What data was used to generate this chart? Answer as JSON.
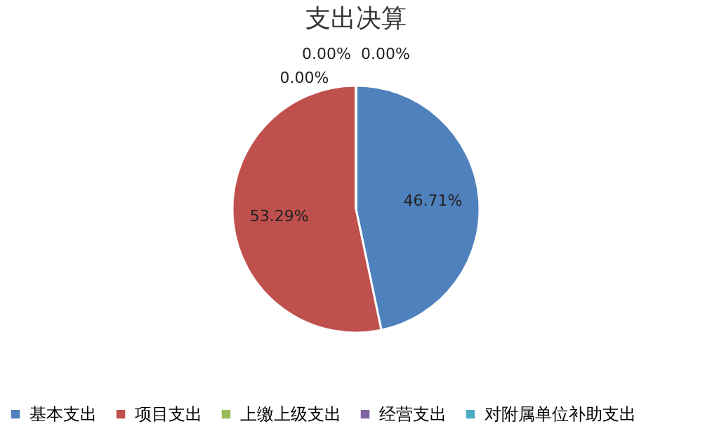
{
  "chart_data": {
    "type": "pie",
    "title": "支出决算",
    "categories": [
      "基本支出",
      "项目支出",
      "上缴上级支出",
      "经营支出",
      "对附属单位补助支出"
    ],
    "values": [
      46.71,
      53.29,
      0,
      0,
      0
    ],
    "value_labels": [
      "46.71%",
      "53.29%",
      "0.00%",
      "0.00%",
      "0.00%"
    ],
    "colors": [
      "#4f81bd",
      "#c0504d",
      "#9bbb59",
      "#8064a2",
      "#4bacc6"
    ],
    "legend": "bottom"
  }
}
